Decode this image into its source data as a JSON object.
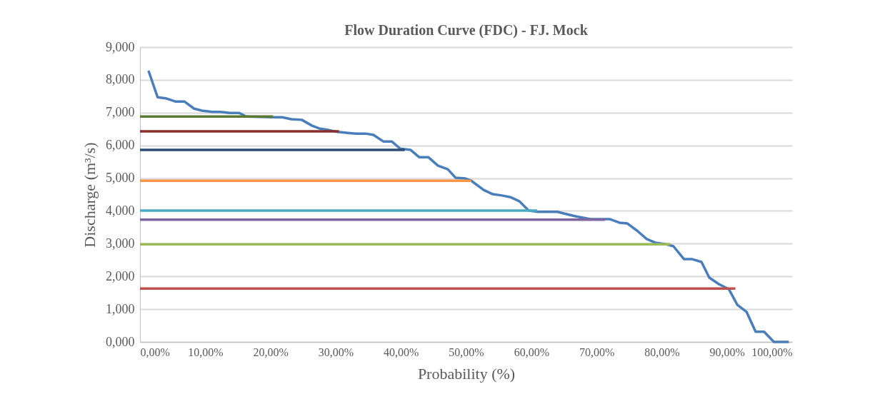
{
  "chart_data": {
    "type": "line",
    "title": "Flow Duration Curve (FDC) - FJ. Mock",
    "xlabel": "Probability (%)",
    "ylabel": "Discharge (m³/s)",
    "xlim": [
      0,
      100
    ],
    "xticks": [
      {
        "value": 0,
        "label": "0,00%"
      },
      {
        "value": 10,
        "label": "10,00%"
      },
      {
        "value": 20,
        "label": "20,00%"
      },
      {
        "value": 30,
        "label": "30,00%"
      },
      {
        "value": 40,
        "label": "40,00%"
      },
      {
        "value": 50,
        "label": "50,00%"
      },
      {
        "value": 60,
        "label": "60,00%"
      },
      {
        "value": 70,
        "label": "70,00%"
      },
      {
        "value": 80,
        "label": "80,00%"
      },
      {
        "value": 90,
        "label": "90,00%"
      },
      {
        "value": 100,
        "label": "100,00%"
      }
    ],
    "ylim": [
      0,
      9
    ],
    "yticks": [
      {
        "value": 0,
        "label": "0,000"
      },
      {
        "value": 1,
        "label": "1,000"
      },
      {
        "value": 2,
        "label": "2,000"
      },
      {
        "value": 3,
        "label": "3,000"
      },
      {
        "value": 4,
        "label": "4,000"
      },
      {
        "value": 5,
        "label": "5,000"
      },
      {
        "value": 6,
        "label": "6,000"
      },
      {
        "value": 7,
        "label": "7,000"
      },
      {
        "value": 8,
        "label": "8,000"
      },
      {
        "value": 9,
        "label": "9,000"
      }
    ],
    "grid": "y",
    "marker": "none",
    "line_style": "solid",
    "series": [
      {
        "color": "#4a7ebb",
        "x": [
          1.3,
          2.7,
          4.1,
          5.4,
          6.8,
          8.3,
          9.5,
          11.1,
          12.3,
          13.8,
          15.2,
          16.3,
          20.5,
          21.8,
          23.2,
          24.8,
          26.4,
          27.6,
          28.9,
          30.3,
          31.9,
          33.1,
          34.6,
          35.8,
          37.3,
          38.6,
          39.9,
          41.5,
          42.8,
          44.2,
          45.7,
          47.2,
          48.4,
          49.9,
          50.8,
          52.7,
          54.1,
          55.5,
          56.8,
          58.2,
          59.6,
          61.0,
          62.5,
          64.0,
          65.4,
          66.9,
          69.1,
          71.3,
          72.0,
          73.5,
          74.7,
          76.2,
          77.7,
          79.0,
          80.7,
          81.8,
          83.4,
          84.6,
          86.1,
          87.3,
          88.8,
          90.3,
          91.6,
          93.0,
          94.4,
          95.7,
          97.2,
          99.5
        ],
        "values": [
          8.28,
          7.47,
          7.43,
          7.34,
          7.34,
          7.12,
          7.06,
          7.02,
          7.02,
          6.99,
          6.99,
          6.88,
          6.86,
          6.86,
          6.8,
          6.78,
          6.6,
          6.51,
          6.47,
          6.41,
          6.38,
          6.36,
          6.36,
          6.32,
          6.12,
          6.12,
          5.9,
          5.86,
          5.64,
          5.64,
          5.38,
          5.27,
          5.01,
          4.99,
          4.92,
          4.64,
          4.51,
          4.47,
          4.42,
          4.29,
          4.01,
          3.97,
          3.97,
          3.97,
          3.9,
          3.83,
          3.75,
          3.75,
          3.75,
          3.64,
          3.62,
          3.4,
          3.14,
          3.03,
          2.98,
          2.92,
          2.53,
          2.53,
          2.44,
          1.96,
          1.76,
          1.61,
          1.13,
          0.92,
          0.31,
          0.31,
          0,
          0
        ]
      },
      {
        "color": "#5a7a32",
        "x": [
          0,
          20.4
        ],
        "values": [
          6.88,
          6.88
        ]
      },
      {
        "color": "#8b2d2d",
        "x": [
          0,
          30.5
        ],
        "values": [
          6.43,
          6.43
        ]
      },
      {
        "color": "#2c4d75",
        "x": [
          0,
          40.6
        ],
        "values": [
          5.86,
          5.86
        ]
      },
      {
        "color": "#f79646",
        "x": [
          0,
          50.8
        ],
        "values": [
          4.92,
          4.92
        ]
      },
      {
        "color": "#4bacc6",
        "x": [
          0,
          60.9
        ],
        "values": [
          4.01,
          4.01
        ]
      },
      {
        "color": "#8064a2",
        "x": [
          0,
          71.3
        ],
        "values": [
          3.73,
          3.73
        ]
      },
      {
        "color": "#9bbb59",
        "x": [
          0,
          81.3
        ],
        "values": [
          2.98,
          2.98
        ]
      },
      {
        "color": "#c0504d",
        "x": [
          0,
          91.3
        ],
        "values": [
          1.63,
          1.63
        ]
      }
    ]
  }
}
